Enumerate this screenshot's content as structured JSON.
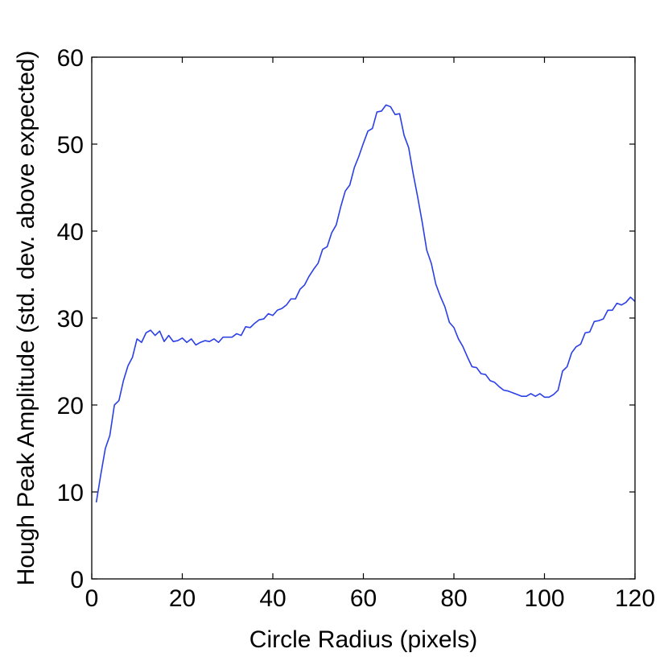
{
  "chart_data": {
    "type": "line",
    "title": "",
    "xlabel": "Circle Radius (pixels)",
    "ylabel": "Hough Peak Amplitude (std. dev. above expected)",
    "xlim": [
      0,
      120
    ],
    "ylim": [
      0,
      60
    ],
    "xticks": [
      0,
      20,
      40,
      60,
      80,
      100,
      120
    ],
    "yticks": [
      0,
      10,
      20,
      30,
      40,
      50,
      60
    ],
    "grid": false,
    "legend": "none",
    "line_color": "#2b3fe6",
    "series": [
      {
        "x": [
          1,
          2,
          3,
          4,
          5,
          6,
          7,
          8,
          9,
          10,
          11,
          12,
          13,
          14,
          15,
          16,
          17,
          18,
          19,
          20,
          21,
          22,
          23,
          24,
          25,
          26,
          27,
          28,
          29,
          30,
          31,
          32,
          33,
          34,
          35,
          36,
          37,
          38,
          39,
          40,
          41,
          42,
          43,
          44,
          45,
          46,
          47,
          48,
          49,
          50,
          51,
          52,
          53,
          54,
          55,
          56,
          57,
          58,
          59,
          60,
          61,
          62,
          63,
          64,
          65,
          66,
          67,
          68,
          69,
          70,
          71,
          72,
          73,
          74,
          75,
          76,
          77,
          78,
          79,
          80,
          81,
          82,
          83,
          84,
          85,
          86,
          87,
          88,
          89,
          90,
          91,
          92,
          93,
          94,
          95,
          96,
          97,
          98,
          99,
          100,
          101,
          102,
          103,
          104,
          105,
          106,
          107,
          108,
          109,
          110,
          111,
          112,
          113,
          114,
          115,
          116,
          117,
          118,
          119,
          120
        ],
        "values": [
          8.8,
          12.0,
          15.0,
          16.5,
          20.0,
          20.5,
          22.8,
          24.5,
          25.5,
          27.6,
          27.2,
          28.3,
          28.6,
          28.0,
          28.5,
          27.3,
          28.0,
          27.3,
          27.4,
          27.7,
          27.2,
          27.6,
          26.9,
          27.2,
          27.4,
          27.3,
          27.6,
          27.2,
          27.8,
          27.8,
          27.8,
          28.2,
          28.0,
          29.0,
          28.9,
          29.4,
          29.8,
          29.9,
          30.5,
          30.3,
          30.9,
          31.1,
          31.5,
          32.2,
          32.2,
          33.3,
          33.8,
          34.8,
          35.6,
          36.3,
          37.9,
          38.2,
          39.8,
          40.7,
          42.8,
          44.6,
          45.3,
          47.3,
          48.6,
          50.1,
          51.5,
          51.8,
          53.7,
          53.8,
          54.5,
          54.3,
          53.4,
          53.5,
          51.0,
          49.6,
          46.6,
          43.9,
          41.0,
          37.8,
          36.3,
          33.9,
          32.5,
          31.3,
          29.5,
          28.9,
          27.6,
          26.7,
          25.5,
          24.4,
          24.3,
          23.6,
          23.5,
          22.8,
          22.6,
          22.1,
          21.7,
          21.6,
          21.4,
          21.2,
          21.0,
          21.0,
          21.3,
          21.0,
          21.3,
          20.9,
          20.9,
          21.2,
          21.7,
          23.9,
          24.4,
          26.0,
          26.7,
          27.0,
          28.3,
          28.4,
          29.6,
          29.7,
          29.9,
          30.9,
          30.9,
          31.7,
          31.5,
          31.8,
          32.4,
          31.9
        ]
      }
    ]
  }
}
